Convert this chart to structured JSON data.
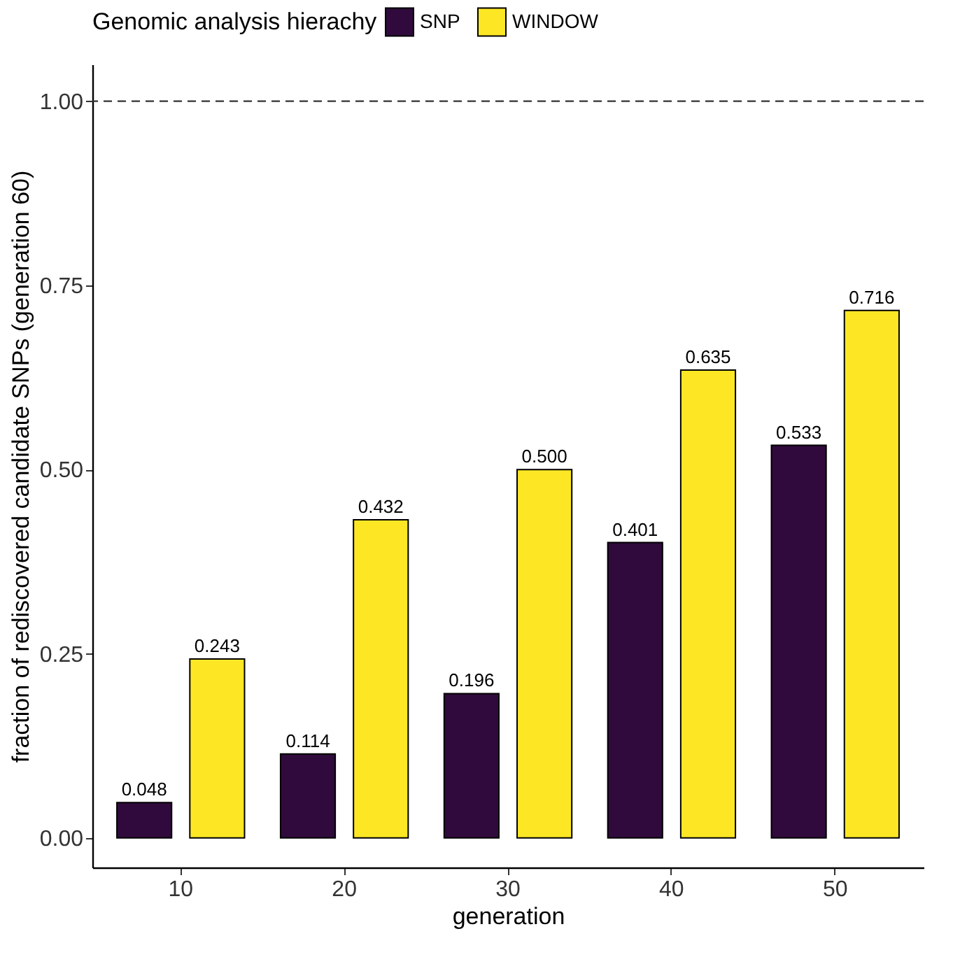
{
  "chart_data": {
    "type": "bar",
    "xlabel": "generation",
    "ylabel": "fraction of rediscovered candidate SNPs (generation 60)",
    "legend_title": "Genomic analysis hierachy",
    "legend": "top",
    "categories": [
      "10",
      "20",
      "30",
      "40",
      "50"
    ],
    "series": [
      {
        "name": "SNP",
        "color": "#300a3c",
        "values": [
          0.048,
          0.114,
          0.196,
          0.401,
          0.533
        ],
        "value_labels": [
          "0.048",
          "0.114",
          "0.196",
          "0.401",
          "0.533"
        ]
      },
      {
        "name": "WINDOW",
        "color": "#fde725",
        "values": [
          0.243,
          0.432,
          0.5,
          0.635,
          0.716
        ],
        "value_labels": [
          "0.243",
          "0.432",
          "0.500",
          "0.635",
          "0.716"
        ]
      }
    ],
    "ylim": [
      -0.04,
      1.05
    ],
    "yticks": [
      {
        "value": 0,
        "label": "0.00"
      },
      {
        "value": 0.25,
        "label": "0.25"
      },
      {
        "value": 0.5,
        "label": "0.50"
      },
      {
        "value": 0.75,
        "label": "0.75"
      },
      {
        "value": 1,
        "label": "1.00"
      }
    ],
    "ref_lines": [
      {
        "axis": "y",
        "value": 1,
        "line_style": "dashed"
      }
    ],
    "grid": false
  }
}
